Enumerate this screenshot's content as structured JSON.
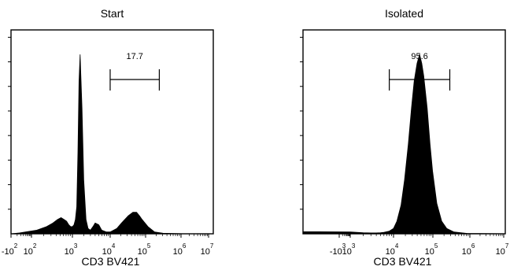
{
  "chart_data": [
    {
      "type": "area",
      "title": "Start",
      "xlabel": "CD3 BV421",
      "ylabel": "",
      "x_scale": "biexponential",
      "x_ticks": [
        {
          "base": "-10",
          "exp": "2"
        },
        {
          "base": "10",
          "exp": "2"
        },
        {
          "base": "10",
          "exp": "3"
        },
        {
          "base": "10",
          "exp": "4"
        },
        {
          "base": "10",
          "exp": "5"
        },
        {
          "base": "10",
          "exp": "6"
        },
        {
          "base": "10",
          "exp": "7"
        }
      ],
      "gate": {
        "label": "17.7",
        "x_from": 10000,
        "x_to": 200000
      },
      "series": [
        {
          "x": [
            -300,
            0,
            30,
            100,
            200,
            300,
            400,
            500,
            600,
            700,
            800,
            900,
            1000,
            1100,
            1200,
            1300,
            1400,
            1500,
            1600,
            1800,
            2000,
            2300,
            2600,
            3000,
            3500,
            4000,
            5000,
            6000,
            8000,
            10000,
            15000,
            20000,
            30000,
            40000,
            50000,
            60000,
            70000,
            100000,
            150000,
            250000,
            1000000,
            10000000
          ],
          "y": [
            0,
            0.005,
            0.01,
            0.02,
            0.04,
            0.06,
            0.08,
            0.09,
            0.08,
            0.07,
            0.05,
            0.04,
            0.04,
            0.05,
            0.08,
            0.15,
            0.45,
            0.85,
            1.0,
            0.7,
            0.3,
            0.08,
            0.03,
            0.02,
            0.04,
            0.06,
            0.05,
            0.02,
            0.01,
            0.01,
            0.03,
            0.06,
            0.1,
            0.12,
            0.12,
            0.1,
            0.08,
            0.04,
            0.01,
            0.003,
            0,
            0
          ]
        }
      ]
    },
    {
      "type": "area",
      "title": "Isolated",
      "xlabel": "CD3 BV421",
      "ylabel": "",
      "x_scale": "biexponential",
      "x_ticks": [
        {
          "base": "-10",
          "exp": "3"
        },
        {
          "base": "10",
          "exp": "3"
        },
        {
          "base": "10",
          "exp": "4"
        },
        {
          "base": "10",
          "exp": "5"
        },
        {
          "base": "10",
          "exp": "6"
        },
        {
          "base": "10",
          "exp": "7"
        }
      ],
      "gate": {
        "label": "95.6",
        "x_from": 8000,
        "x_to": 200000
      },
      "series": [
        {
          "x": [
            -30000,
            -10000,
            -3000,
            -1000,
            0,
            1000,
            2000,
            3000,
            4000,
            5000,
            6000,
            8000,
            10000,
            12000,
            15000,
            18000,
            22000,
            26000,
            30000,
            35000,
            40000,
            45000,
            50000,
            60000,
            70000,
            80000,
            100000,
            130000,
            170000,
            250000,
            500000,
            10000000
          ],
          "y": [
            0.005,
            0.015,
            0.02,
            0.015,
            0.012,
            0.01,
            0.006,
            0.005,
            0.005,
            0.006,
            0.008,
            0.015,
            0.03,
            0.07,
            0.16,
            0.3,
            0.5,
            0.7,
            0.85,
            0.95,
            1.0,
            0.95,
            0.88,
            0.7,
            0.5,
            0.35,
            0.17,
            0.07,
            0.03,
            0.01,
            0.002,
            0
          ]
        }
      ]
    }
  ]
}
